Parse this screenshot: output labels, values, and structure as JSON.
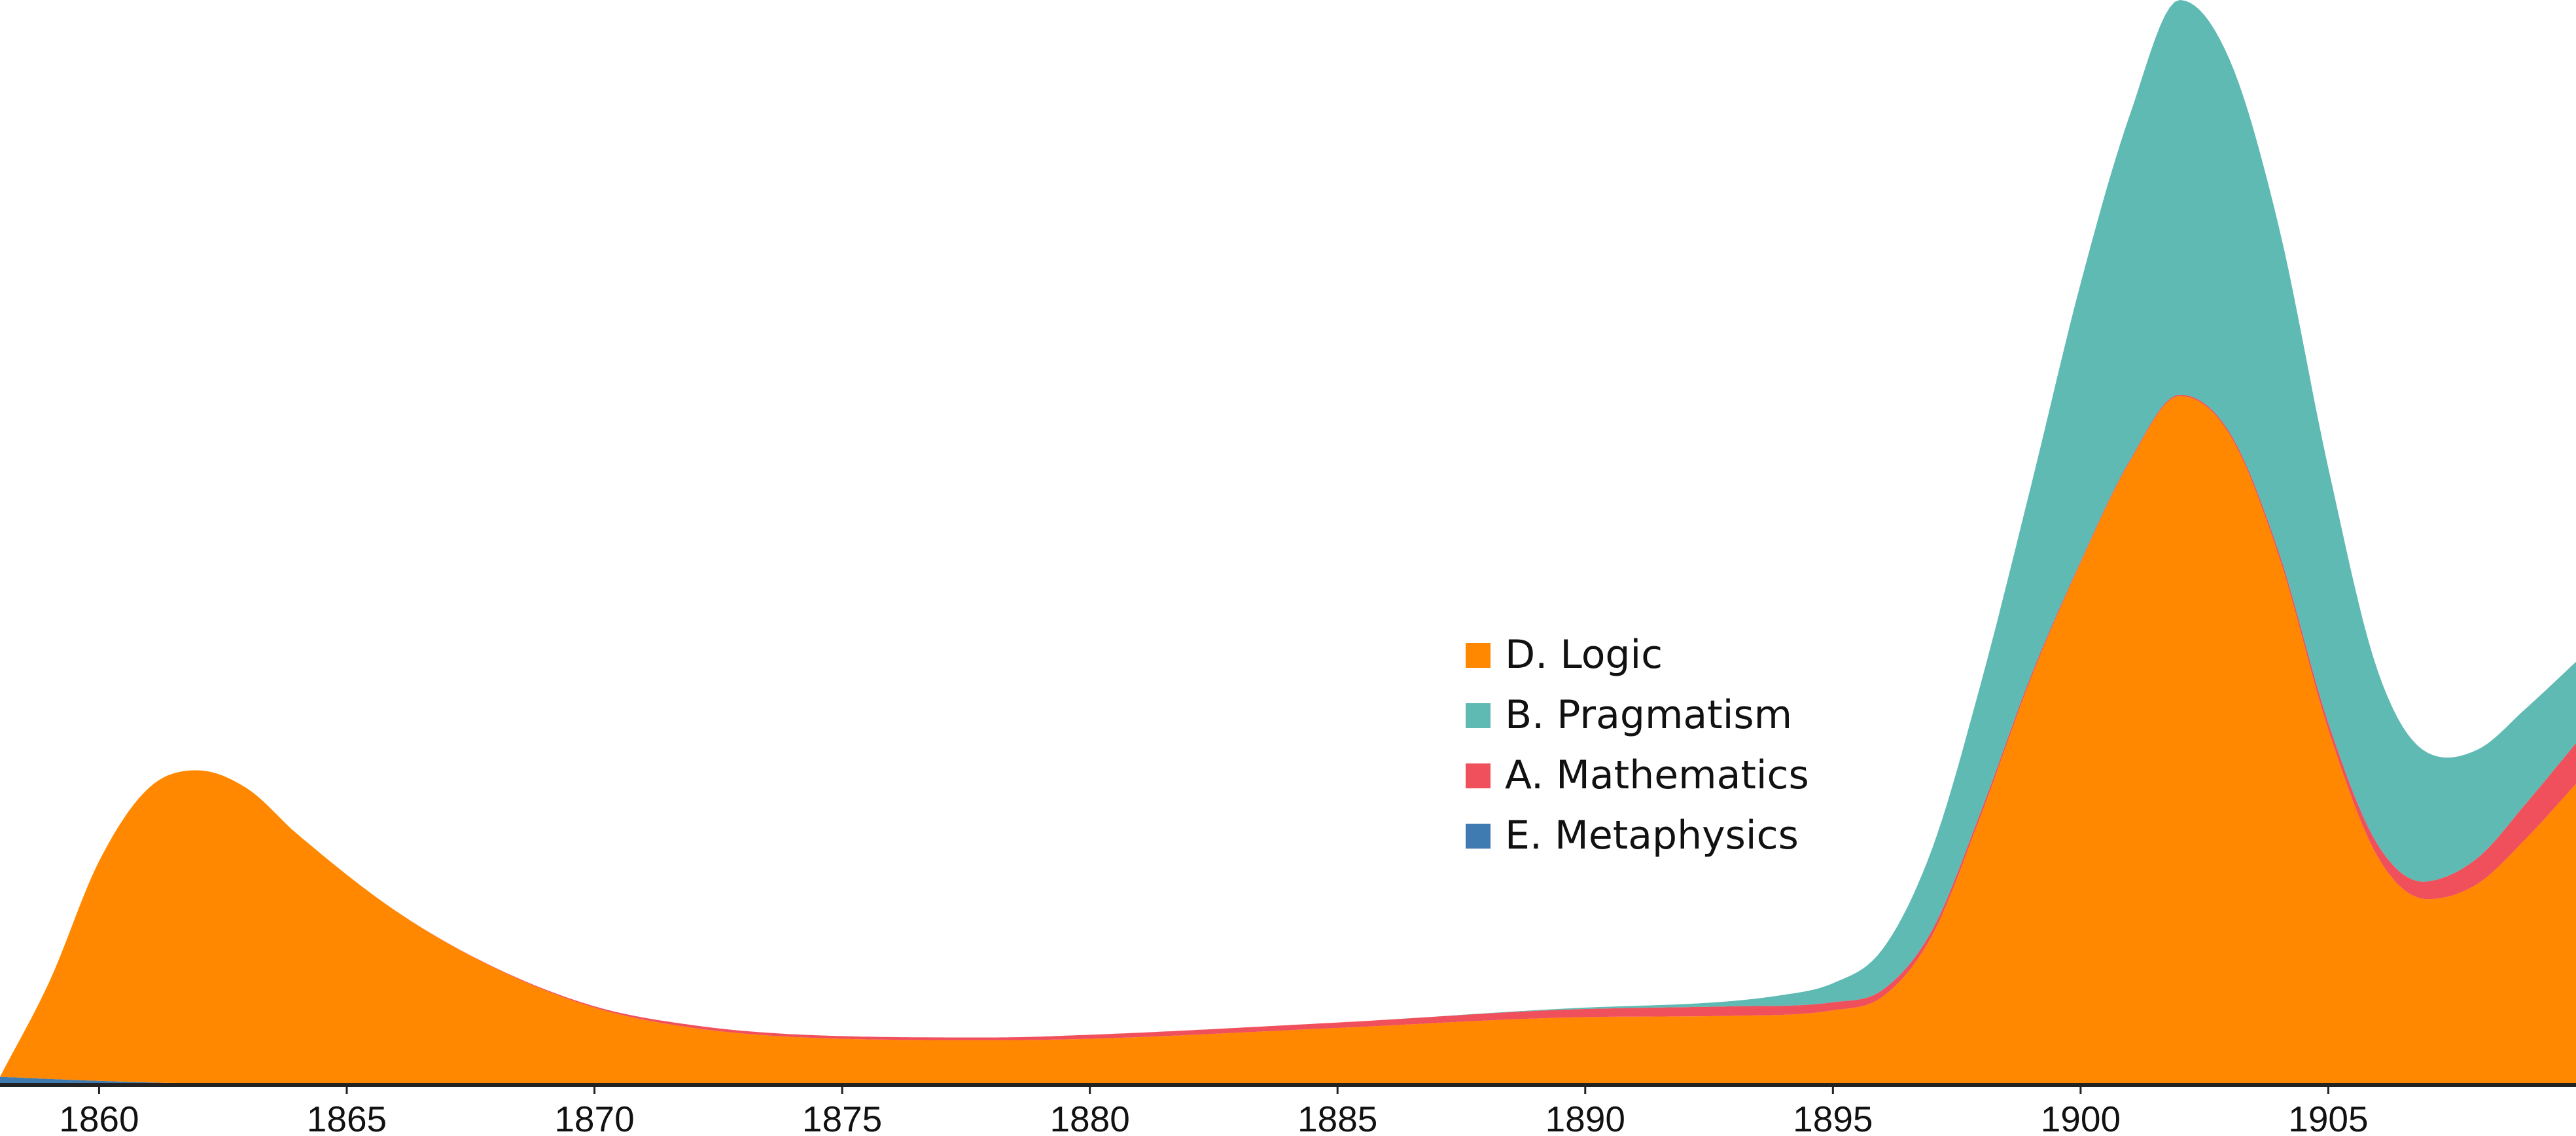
{
  "chart_data": {
    "type": "area",
    "stacked": true,
    "x_axis": {
      "ticks": [
        "1860",
        "1865",
        "1870",
        "1875",
        "1880",
        "1885",
        "1890",
        "1895",
        "1900",
        "1905"
      ],
      "range": [
        1858,
        1910
      ]
    },
    "grid": false,
    "legend_position": "center",
    "series": [
      {
        "name": "E. Metaphysics",
        "color": "#3f7bb1",
        "x": [
          1858,
          1860,
          1862,
          1864,
          1866,
          1870,
          1875,
          1880,
          1885,
          1890,
          1895,
          1900,
          1902,
          1905,
          1907,
          1910
        ],
        "values": [
          6,
          3,
          1,
          0,
          0,
          0,
          0,
          0,
          0,
          0,
          0,
          0,
          0,
          0,
          0,
          0
        ]
      },
      {
        "name": "D. Logic",
        "color": "#ff8800",
        "x": [
          1858,
          1859,
          1860,
          1861,
          1862,
          1863,
          1864,
          1866,
          1868,
          1870,
          1872,
          1875,
          1878,
          1880,
          1885,
          1890,
          1893,
          1895,
          1896,
          1897,
          1898,
          1899,
          1900,
          1901,
          1902,
          1903,
          1904,
          1905,
          1906,
          1907,
          1908,
          1909,
          1910
        ],
        "values": [
          0,
          72,
          162,
          217,
          231,
          218,
          185,
          128,
          86,
          57,
          42,
          34,
          33,
          34,
          42,
          50,
          51,
          55,
          65,
          110,
          200,
          300,
          385,
          460,
          508,
          480,
          390,
          262,
          168,
          137,
          148,
          182,
          222
        ]
      },
      {
        "name": "A. Mathematics",
        "color": "#f0505c",
        "x": [
          1858,
          1860,
          1865,
          1870,
          1872,
          1875,
          1878,
          1880,
          1885,
          1890,
          1893,
          1895,
          1896,
          1897,
          1898,
          1899,
          1900,
          1902,
          1904,
          1905,
          1906,
          1907,
          1908,
          1909,
          1910
        ],
        "values": [
          0,
          0,
          0,
          1,
          2,
          2,
          2,
          3,
          4,
          6,
          7,
          6,
          5,
          4,
          3,
          2,
          1,
          1,
          3,
          5,
          9,
          13,
          19,
          26,
          30
        ]
      },
      {
        "name": "B. Pragmatism",
        "color": "#5fbab3",
        "x": [
          1858,
          1880,
          1885,
          1890,
          1893,
          1894,
          1895,
          1896,
          1897,
          1898,
          1899,
          1900,
          1901,
          1902,
          1903,
          1904,
          1905,
          1906,
          1907,
          1908,
          1909,
          1910
        ],
        "values": [
          0,
          0,
          0,
          1,
          4,
          8,
          14,
          30,
          60,
          95,
          140,
          205,
          255,
          291,
          275,
          240,
          188,
          128,
          95,
          80,
          70,
          60
        ]
      }
    ],
    "stack_order": [
      "E. Metaphysics",
      "D. Logic",
      "A. Mathematics",
      "B. Pragmatism"
    ],
    "legend_order": [
      "D. Logic",
      "B. Pragmatism",
      "A. Mathematics",
      "E. Metaphysics"
    ],
    "y_max": 800
  }
}
